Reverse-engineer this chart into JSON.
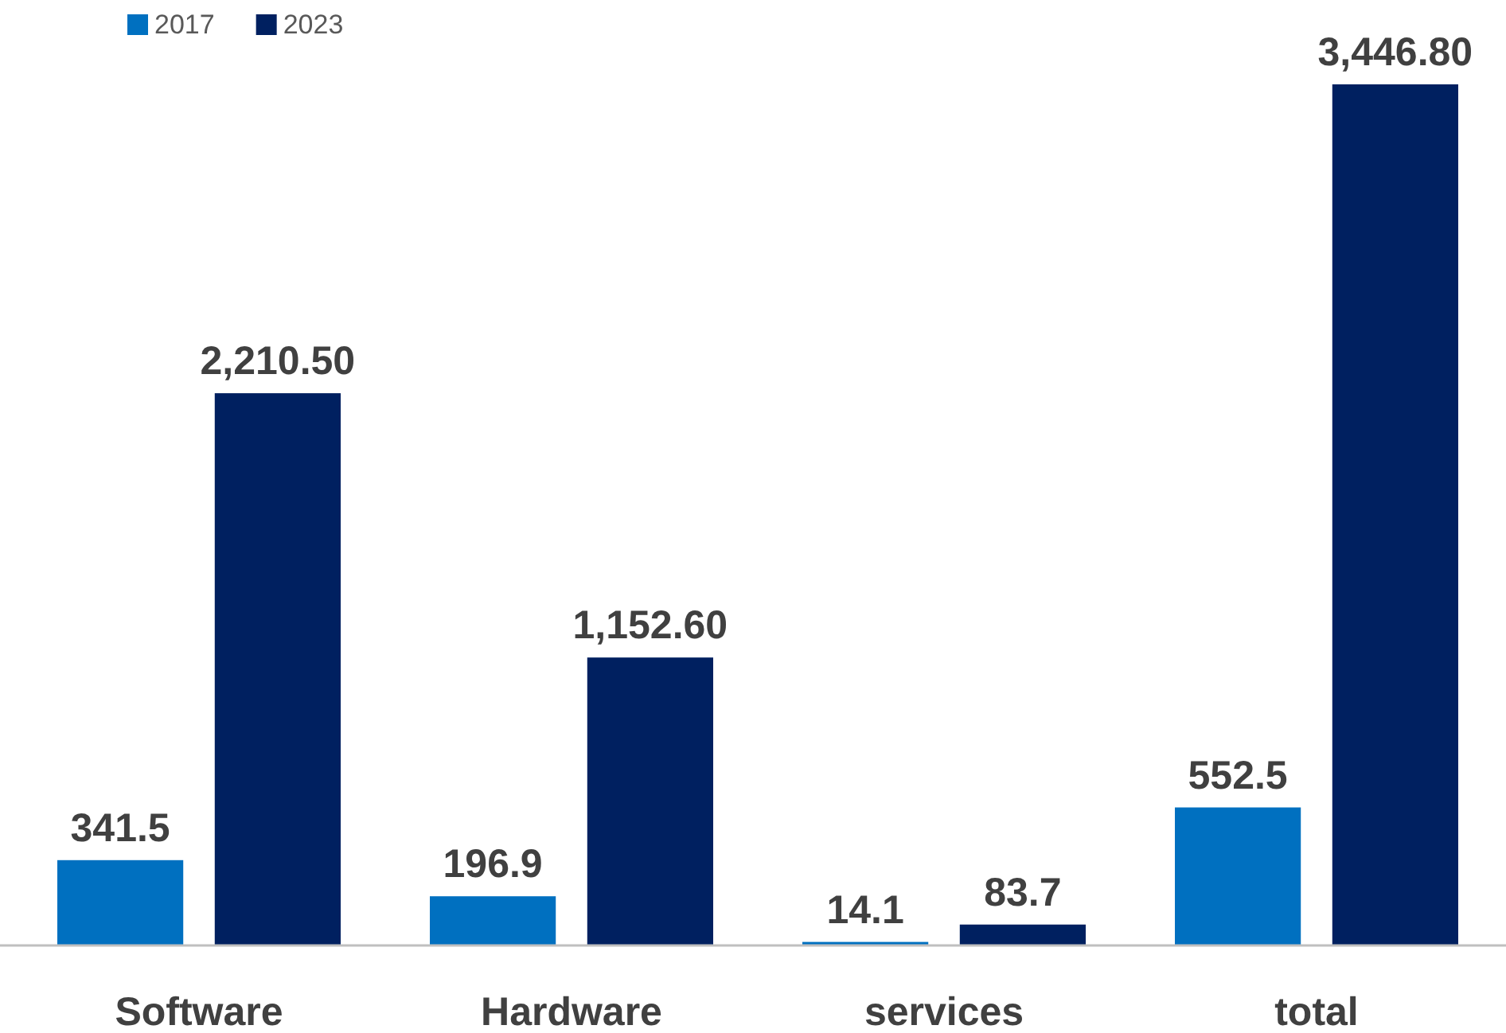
{
  "chart_data": {
    "type": "bar",
    "categories": [
      "Software",
      "Hardware",
      "services",
      "total"
    ],
    "series": [
      {
        "name": "2017",
        "color": "#0070c0",
        "values": [
          341.5,
          196.9,
          14.1,
          552.5
        ],
        "value_labels": [
          "341.5",
          "196.9",
          "14.1",
          "552.5"
        ]
      },
      {
        "name": "2023",
        "color": "#002060",
        "values": [
          2210.5,
          1152.6,
          83.7,
          3446.8
        ],
        "value_labels": [
          "2,210.50",
          "1,152.60",
          "83.7",
          "3,446.80"
        ]
      }
    ],
    "legend": "top left"
  }
}
